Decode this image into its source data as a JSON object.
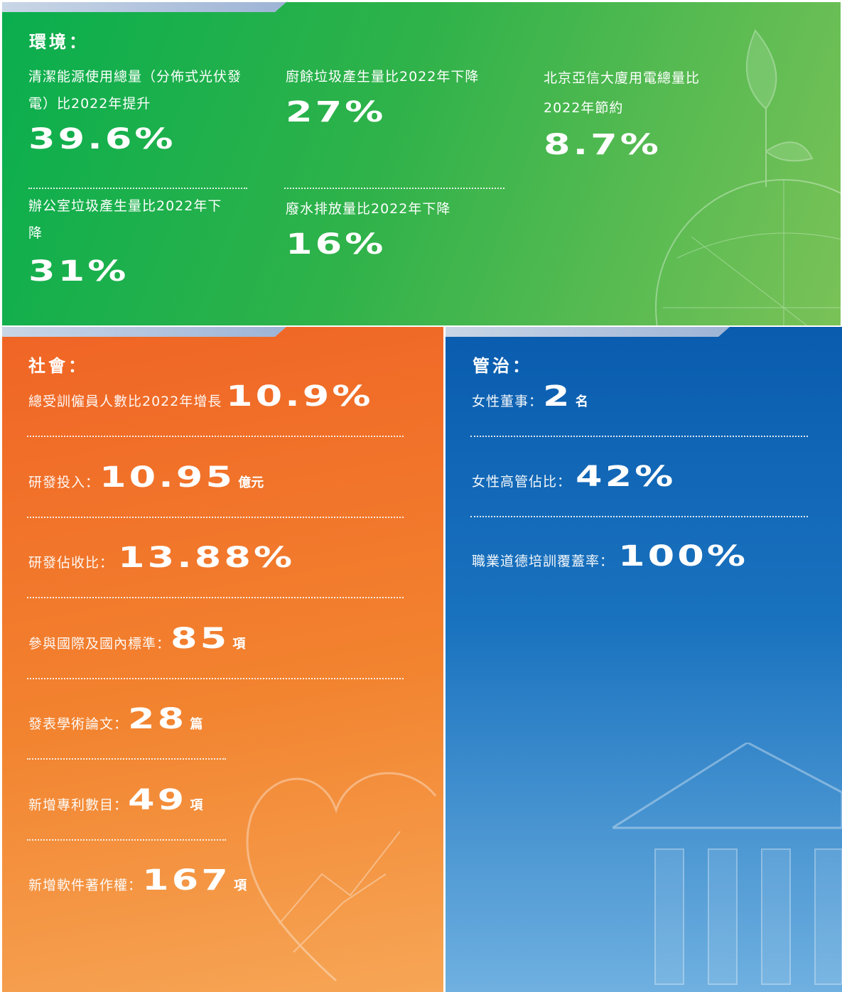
{
  "environment": {
    "title": "環境：",
    "items": [
      {
        "label": "清潔能源使用總量（分佈式光伏發電）比2022年提升",
        "value": "39.6%"
      },
      {
        "label": "廚餘垃圾產生量比2022年下降",
        "value": "27%"
      },
      {
        "label": "北京亞信大廈用電總量比2022年節約",
        "value": "8.7%"
      },
      {
        "label": "辦公室垃圾產生量比2022年下降",
        "value": "31%"
      },
      {
        "label": "廢水排放量比2022年下降",
        "value": "16%"
      }
    ]
  },
  "social": {
    "title": "社會：",
    "items": [
      {
        "label": "總受訓僱員人數比2022年增長",
        "value": "10.9%"
      },
      {
        "label": "研發投入：",
        "value": "10.95",
        "unit": "億元"
      },
      {
        "label": "研發佔收比：",
        "value": "13.88%"
      },
      {
        "label": "參與國際及國內標準：",
        "value": "85",
        "unit": "項"
      },
      {
        "label": "發表學術論文：",
        "value": "28",
        "unit": "篇"
      },
      {
        "label": "新增專利數目：",
        "value": "49",
        "unit": "項"
      },
      {
        "label": "新增軟件著作權：",
        "value": "167",
        "unit": "項"
      }
    ]
  },
  "governance": {
    "title": "管治：",
    "items": [
      {
        "label": "女性董事：",
        "value": "2",
        "unit": "名"
      },
      {
        "label": "女性高管佔比：",
        "value": "42%"
      },
      {
        "label": "職業道德培訓覆蓋率：",
        "value": "100%"
      }
    ]
  }
}
